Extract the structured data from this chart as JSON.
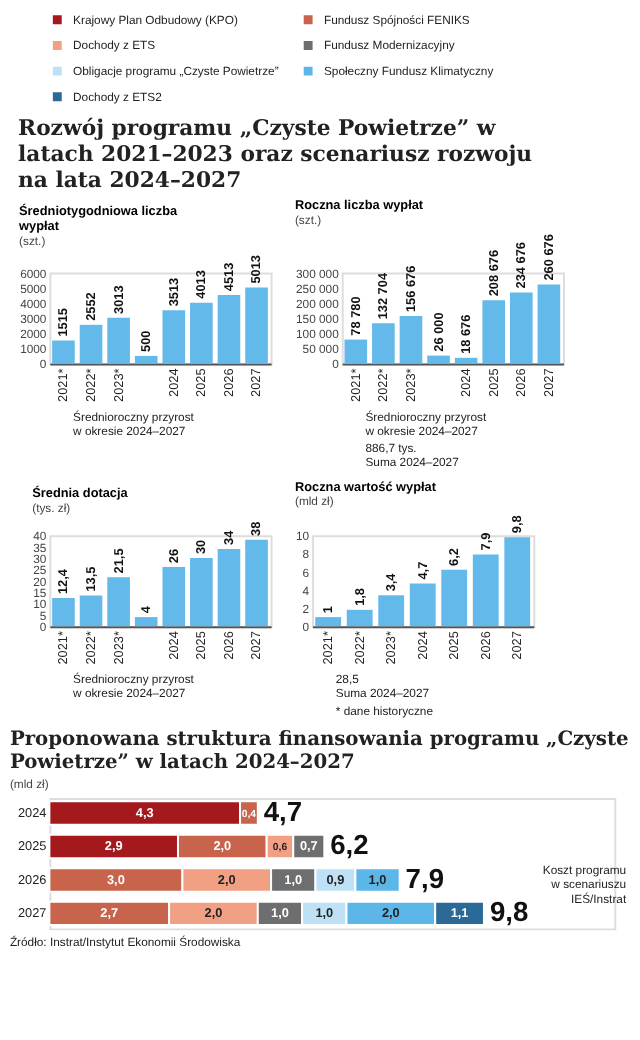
{
  "chart_data": [
    {
      "type": "bar",
      "title": "Rozwój programu „Czyste Powietrze” w latach 2021–2023 oraz scenariusz rozwoju na lata 2024–2027",
      "subtitle": "Średniotygodniowa liczba wypłat",
      "ylabel": "(szt.)",
      "categories": [
        "2021*",
        "2022*",
        "2023*",
        null,
        "2024",
        "2025",
        "2026",
        "2027"
      ],
      "values": [
        1515,
        2552,
        3013,
        500,
        3513,
        4013,
        4513,
        5013
      ],
      "color": "#63b9e9",
      "data_labels": true,
      "ylim": [
        0,
        6000
      ],
      "yticks": [
        0,
        1000,
        2000,
        3000,
        4000,
        5000,
        6000
      ],
      "annotations": [
        "Średnioroczny przyrost\nw okresie 2024–2027"
      ]
    },
    {
      "type": "bar",
      "title": "Roczna liczba wypłat",
      "ylabel": "(szt.)",
      "categories": [
        "2021*",
        "2022*",
        "2023*",
        null,
        "2024",
        "2025",
        "2026",
        "2027"
      ],
      "values": [
        78780,
        132704,
        156676,
        26000,
        18676,
        208676,
        234676,
        260676
      ],
      "color": "#63b9e9",
      "value_labels": [
        "78 780",
        "132 704",
        "156 676",
        "26 000",
        "18 676",
        "208 676",
        "234 676",
        "260 676"
      ],
      "ylim": [
        0,
        300000
      ],
      "yticks": [
        0,
        {
          "value": 50000,
          "label": "50 000"
        },
        {
          "value": 100000,
          "label": "100 000"
        },
        {
          "value": 150000,
          "label": "150 000"
        },
        {
          "value": 200000,
          "label": "200 000"
        },
        {
          "value": 250000,
          "label": "250 000"
        },
        {
          "value": 300000,
          "label": "300 000"
        }
      ],
      "annotations": [
        "Średnioroczny przyrost\nw okresie 2024–2027",
        "886,7 tys.\nSuma 2024–2027"
      ]
    },
    {
      "type": "bar",
      "title": "Średnia dotacja",
      "ylabel": "(tys. zł)",
      "categories": [
        "2021*",
        "2022*",
        "2023*",
        null,
        "2024",
        "2025",
        "2026",
        "2027"
      ],
      "values": [
        12.4,
        13.5,
        21.5,
        4,
        26,
        30,
        34,
        38
      ],
      "color": "#63b9e9",
      "value_labels": [
        "12,4",
        "13,5",
        "21,5",
        "4",
        "26",
        "30",
        "34",
        "38"
      ],
      "ylim": [
        0,
        40
      ],
      "yticks": [
        0,
        5,
        10,
        15,
        20,
        25,
        30,
        35,
        40
      ],
      "annotations": [
        "Średnioroczny przyrost\nw okresie 2024–2027"
      ]
    },
    {
      "type": "bar",
      "title": "Roczna wartość wypłat",
      "ylabel": "(mld zł)",
      "categories": [
        "2021*",
        "2022*",
        "2023*",
        "2024",
        "2025",
        "2026",
        "2027"
      ],
      "values": [
        1,
        1.8,
        3.4,
        4.7,
        6.2,
        7.9,
        9.8
      ],
      "color": "#63b9e9",
      "value_labels": [
        "1",
        "1,8",
        "3,4",
        "4,7",
        "6,2",
        "7,9",
        "9,8"
      ],
      "ylim": [
        0,
        10
      ],
      "yticks": [
        0,
        2,
        4,
        6,
        8,
        10
      ],
      "annotations": [
        "28,5\nSuma 2024–2027",
        "* dane historyczne"
      ]
    },
    {
      "type": "bar",
      "orientation": "horizontal",
      "stacked": true,
      "title": "Proponowana struktura finansowania programu „Czyste Powietrze” w latach 2024–2027",
      "subtitle": "(mld zł)",
      "categories": [
        "2024",
        "2025",
        "2026",
        "2027"
      ],
      "legend": "top",
      "tick_labels": "y",
      "series": [
        {
          "name": "Krajowy Plan Odbudowy (KPO)",
          "color": "#a3191c",
          "values": [
            4.3,
            2.9,
            null,
            null
          ],
          "value_labels": [
            "4,3",
            "2,9",
            null,
            null
          ]
        },
        {
          "name": "Fundusz Spójności FENIKS",
          "color": "#c8644c",
          "values": [
            0.4,
            2.0,
            3.0,
            2.7
          ],
          "value_labels": [
            "0,4",
            "2,0",
            "3,0",
            "2,7"
          ]
        },
        {
          "name": "Dochody z ETS",
          "color": "#f2a084",
          "values": [
            null,
            0.6,
            2.0,
            2.0
          ],
          "value_labels": [
            null,
            "0,6",
            "2,0",
            "2,0"
          ]
        },
        {
          "name": "Fundusz Modernizacyjny",
          "color": "#6d6e70",
          "values": [
            null,
            0.7,
            1.0,
            1.0
          ],
          "value_labels": [
            null,
            "0,7",
            "1,0",
            "1,0"
          ]
        },
        {
          "name": "Obligacje programu „Czyste Powietrze”",
          "color": "#bfe1f6",
          "values": [
            null,
            null,
            0.9,
            1.0
          ],
          "value_labels": [
            null,
            null,
            "0,9",
            "1,0"
          ]
        },
        {
          "name": "Społeczny Fundusz Klimatyczny",
          "color": "#5cb6e8",
          "values": [
            null,
            null,
            1.0,
            2.0
          ],
          "value_labels": [
            null,
            null,
            "1,0",
            "2,0"
          ]
        },
        {
          "name": "Dochody z ETS2",
          "color": "#2b6a97",
          "values": [
            null,
            null,
            null,
            1.1
          ],
          "value_labels": [
            null,
            null,
            null,
            "1,1"
          ]
        }
      ],
      "totals": [
        "4,7",
        "6,2",
        "7,9",
        "9,8"
      ],
      "annotations": [
        "Koszt programu\nw scenariuszu\nIEŚ/Instrat",
        "Źródło: Instrat/Instytut Ekonomii Środowiska"
      ]
    }
  ]
}
